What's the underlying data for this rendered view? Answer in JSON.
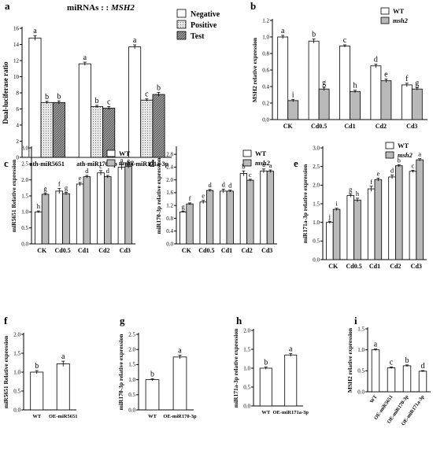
{
  "colors": {
    "wt": "#ffffff",
    "msh2": "#b9b9b9",
    "negative": "#ffffff",
    "positive": "#e6e6e6",
    "test": "#9a9a9a",
    "stroke": "#000000"
  },
  "chart_data": [
    {
      "id": "a",
      "panel_label": "a",
      "type": "bar",
      "title": "miRNAs : : MSH2",
      "ylabel": "Dual-luciferase ratio",
      "ylim": [
        0,
        16
      ],
      "yticks": [
        0,
        2,
        4,
        6,
        8,
        10,
        12,
        14,
        16
      ],
      "categories": [
        "ath-miR5651",
        "ath-miR170-3p",
        "ath-miR171a-3p"
      ],
      "series": [
        {
          "name": "Negative",
          "values": [
            14.8,
            11.6,
            13.7
          ],
          "errors": [
            0.3,
            0.2,
            0.25
          ],
          "letters": [
            "a",
            "a",
            "a"
          ]
        },
        {
          "name": "Positive",
          "values": [
            6.8,
            6.3,
            7.1
          ],
          "errors": [
            0.15,
            0.15,
            0.15
          ],
          "letters": [
            "b",
            "b",
            "c"
          ]
        },
        {
          "name": "Test",
          "values": [
            6.8,
            6.1,
            7.8
          ],
          "errors": [
            0.2,
            0.2,
            0.25
          ],
          "letters": [
            "b",
            "c",
            "b"
          ]
        }
      ],
      "legend_position": "top-right"
    },
    {
      "id": "b",
      "panel_label": "b",
      "type": "bar",
      "ylabel": "MSH2 relative expression",
      "ylim": [
        0,
        1.2
      ],
      "yticks": [
        0.0,
        0.2,
        0.4,
        0.6,
        0.8,
        1.0,
        1.2
      ],
      "categories": [
        "CK",
        "Cd0.5",
        "Cd1",
        "Cd2",
        "Cd3"
      ],
      "series": [
        {
          "name": "WT",
          "values": [
            1.0,
            0.95,
            0.89,
            0.65,
            0.42
          ],
          "errors": [
            0.02,
            0.025,
            0.015,
            0.02,
            0.02
          ],
          "letters": [
            "a",
            "b",
            "c",
            "d",
            "f"
          ]
        },
        {
          "name": "msh2",
          "values": [
            0.23,
            0.37,
            0.34,
            0.47,
            0.37
          ],
          "errors": [
            0.015,
            0.02,
            0.015,
            0.02,
            0.015
          ],
          "letters": [
            "i",
            "g",
            "h",
            "e",
            "g"
          ]
        }
      ],
      "legend_position": "top-right"
    },
    {
      "id": "c",
      "panel_label": "c",
      "type": "bar",
      "ylabel": "miR5651 Relative expression",
      "ylim": [
        0,
        3.0
      ],
      "yticks": [
        0.0,
        0.5,
        1.0,
        1.5,
        2.0,
        2.5,
        3.0
      ],
      "categories": [
        "CK",
        "Cd0.5",
        "Cd1",
        "Cd2",
        "Cd3"
      ],
      "series": [
        {
          "name": "WT",
          "values": [
            1.0,
            1.65,
            1.87,
            2.22,
            2.4
          ],
          "errors": [
            0.03,
            0.08,
            0.05,
            0.07,
            0.08
          ],
          "letters": [
            "h",
            "f",
            "e",
            "c",
            "a"
          ]
        },
        {
          "name": "msh2",
          "values": [
            1.55,
            1.57,
            2.1,
            2.1,
            2.42
          ],
          "errors": [
            0.03,
            0.04,
            0.04,
            0.04,
            0.05
          ],
          "letters": [
            "g",
            "g",
            "d",
            "d",
            "a"
          ]
        }
      ],
      "legend_position": "top-right"
    },
    {
      "id": "d",
      "panel_label": "d",
      "type": "bar",
      "ylabel": "miR170-3p relative expression",
      "ylim": [
        0,
        3.0
      ],
      "yticks": [
        0.0,
        0.4,
        0.8,
        1.2,
        1.6,
        2.0,
        2.4,
        2.8
      ],
      "categories": [
        "CK",
        "Cd0.5",
        "Cd1",
        "Cd2",
        "Cd3"
      ],
      "series": [
        {
          "name": "WT",
          "values": [
            1.0,
            1.31,
            1.65,
            2.2,
            2.28
          ],
          "errors": [
            0.02,
            0.05,
            0.06,
            0.08,
            0.06
          ],
          "letters": [
            "g",
            "e",
            "d",
            "b",
            "a"
          ]
        },
        {
          "name": "msh2",
          "values": [
            1.25,
            1.67,
            1.65,
            1.99,
            2.27
          ],
          "errors": [
            0.03,
            0.03,
            0.03,
            0.03,
            0.04
          ],
          "letters": [
            "f",
            "d",
            "d",
            "c",
            "a"
          ]
        }
      ],
      "legend_position": "top-right"
    },
    {
      "id": "e",
      "panel_label": "e",
      "type": "bar",
      "ylabel": "miR171a-3p relative expression",
      "ylim": [
        0,
        3.0
      ],
      "yticks": [
        0.0,
        0.5,
        1.0,
        1.5,
        2.0,
        2.5,
        3.0
      ],
      "categories": [
        "CK",
        "Cd0.5",
        "Cd1",
        "Cd2",
        "Cd3"
      ],
      "series": [
        {
          "name": "WT",
          "values": [
            1.0,
            1.72,
            1.9,
            2.22,
            2.37
          ],
          "errors": [
            0.03,
            0.04,
            0.07,
            0.05,
            0.03
          ],
          "letters": [
            "j",
            "g",
            "f",
            "d",
            "c"
          ]
        },
        {
          "name": "msh2",
          "values": [
            1.35,
            1.6,
            2.15,
            2.52,
            2.68
          ],
          "errors": [
            0.03,
            0.05,
            0.04,
            0.03,
            0.03
          ],
          "letters": [
            "i",
            "h",
            "e",
            "b",
            "a"
          ]
        }
      ],
      "legend_position": "top-right"
    },
    {
      "id": "f",
      "panel_label": "f",
      "type": "bar",
      "ylabel": "miR5651 Relative expression",
      "ylim": [
        0,
        2.0
      ],
      "yticks": [
        0.0,
        0.5,
        1.0,
        1.5,
        2.0
      ],
      "categories": [
        "WT",
        "OE-miR5651"
      ],
      "values": [
        1.0,
        1.22
      ],
      "errors": [
        0.04,
        0.07
      ],
      "letters": [
        "b",
        "a"
      ]
    },
    {
      "id": "g",
      "panel_label": "g",
      "type": "bar",
      "ylabel": "miR170-3p relative expression",
      "ylim": [
        0,
        2.5
      ],
      "yticks": [
        0.0,
        0.5,
        1.0,
        1.5,
        2.0,
        2.5
      ],
      "categories": [
        "WT",
        "OE-miR170-3p"
      ],
      "values": [
        1.0,
        1.75
      ],
      "errors": [
        0.03,
        0.06
      ],
      "letters": [
        "b",
        "a"
      ]
    },
    {
      "id": "h",
      "panel_label": "h",
      "type": "bar",
      "ylabel": "miR171a-3p relative expression",
      "ylim": [
        0,
        2.0
      ],
      "yticks": [
        0.0,
        0.5,
        1.0,
        1.5,
        2.0
      ],
      "categories": [
        "WT",
        "OE-miR171a-3p"
      ],
      "values": [
        1.0,
        1.35
      ],
      "errors": [
        0.03,
        0.04
      ],
      "letters": [
        "b",
        "a"
      ]
    },
    {
      "id": "i",
      "panel_label": "i",
      "type": "bar",
      "ylabel": "MSH2 relative expression",
      "ylim": [
        0,
        1.5
      ],
      "yticks": [
        0.0,
        0.5,
        1.0,
        1.5
      ],
      "categories": [
        "WT",
        "OE-miR5651",
        "OE-miR170-3p",
        "OE-miR171a-3p"
      ],
      "values": [
        1.0,
        0.57,
        0.62,
        0.49
      ],
      "errors": [
        0.02,
        0.02,
        0.02,
        0.015
      ],
      "letters": [
        "a",
        "c",
        "b",
        "d"
      ]
    }
  ]
}
